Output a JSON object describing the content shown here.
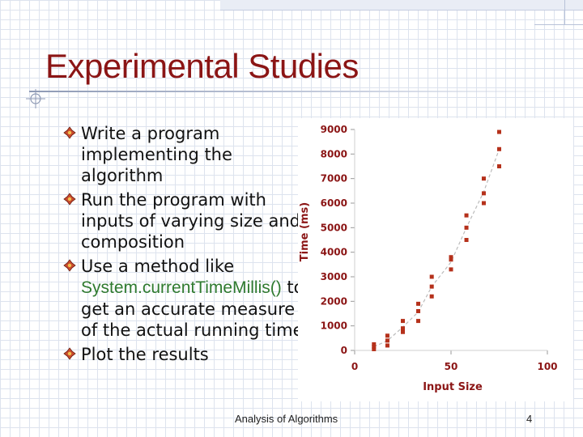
{
  "slide": {
    "title": "Experimental Studies",
    "footer": "Analysis of Algorithms",
    "page_number": "4",
    "bullets": [
      {
        "text": "Write a program implementing the algorithm"
      },
      {
        "text": "Run the program with inputs of varying size and composition"
      },
      {
        "text": "Use a method like ",
        "code": "System.currentTimeMillis()",
        "text_after": " to get an accurate measure of the actual running time"
      },
      {
        "text": "Plot the results"
      }
    ],
    "bullet_icon": "diamond-flower-icon",
    "colors": {
      "title": "#8b1515",
      "axis_text": "#8b1515",
      "points": "#b5311b",
      "code_text": "#2f7a2f"
    }
  },
  "chart_data": {
    "type": "scatter",
    "xlabel": "Input Size",
    "ylabel": "Time (ms)",
    "xlim": [
      0,
      100
    ],
    "ylim": [
      0,
      9000
    ],
    "xticks": [
      0,
      50,
      100
    ],
    "yticks": [
      0,
      1000,
      2000,
      3000,
      4000,
      5000,
      6000,
      7000,
      8000,
      9000
    ],
    "trendline": "dashed-curve",
    "points": [
      {
        "x": 10,
        "y": 50
      },
      {
        "x": 10,
        "y": 150
      },
      {
        "x": 10,
        "y": 250
      },
      {
        "x": 17,
        "y": 200
      },
      {
        "x": 17,
        "y": 400
      },
      {
        "x": 17,
        "y": 600
      },
      {
        "x": 25,
        "y": 750
      },
      {
        "x": 25,
        "y": 900
      },
      {
        "x": 25,
        "y": 1200
      },
      {
        "x": 33,
        "y": 1200
      },
      {
        "x": 33,
        "y": 1600
      },
      {
        "x": 33,
        "y": 1900
      },
      {
        "x": 40,
        "y": 2200
      },
      {
        "x": 40,
        "y": 2600
      },
      {
        "x": 40,
        "y": 3000
      },
      {
        "x": 50,
        "y": 3300
      },
      {
        "x": 50,
        "y": 3700
      },
      {
        "x": 50,
        "y": 3800
      },
      {
        "x": 58,
        "y": 4500
      },
      {
        "x": 58,
        "y": 5000
      },
      {
        "x": 58,
        "y": 5500
      },
      {
        "x": 67,
        "y": 6000
      },
      {
        "x": 67,
        "y": 6400
      },
      {
        "x": 67,
        "y": 7000
      },
      {
        "x": 75,
        "y": 7500
      },
      {
        "x": 75,
        "y": 8200
      },
      {
        "x": 75,
        "y": 8900
      }
    ]
  }
}
